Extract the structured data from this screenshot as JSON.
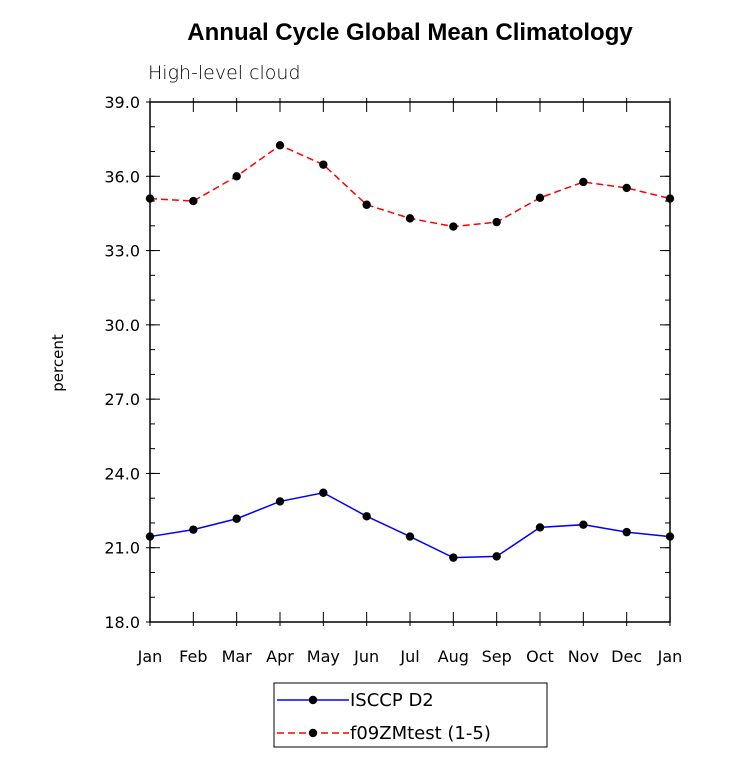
{
  "chart_data": {
    "type": "line",
    "title": "Annual Cycle Global Mean Climatology",
    "subtitle": "High-level cloud",
    "xlabel": "",
    "ylabel": "percent",
    "categories": [
      "Jan",
      "Feb",
      "Mar",
      "Apr",
      "May",
      "Jun",
      "Jul",
      "Aug",
      "Sep",
      "Oct",
      "Nov",
      "Dec",
      "Jan"
    ],
    "ylim": [
      18.0,
      39.0
    ],
    "yticks": [
      "18.0",
      "21.0",
      "24.0",
      "27.0",
      "30.0",
      "33.0",
      "36.0",
      "39.0"
    ],
    "grid": false,
    "legend_position": "bottom-center",
    "series": [
      {
        "name": "ISCCP D2",
        "color": "#0000ff",
        "line_style": "solid",
        "marker": "filled-circle",
        "values": [
          21.45,
          21.73,
          22.17,
          22.87,
          23.22,
          22.27,
          21.45,
          20.6,
          20.65,
          21.82,
          21.93,
          21.63,
          21.45
        ]
      },
      {
        "name": "f09ZMtest (1-5)",
        "color": "#ff0000",
        "line_style": "dashed",
        "marker": "filled-circle",
        "values": [
          35.1,
          35.0,
          36.0,
          37.25,
          36.47,
          34.85,
          34.3,
          33.97,
          34.15,
          35.13,
          35.77,
          35.53,
          35.1
        ]
      }
    ]
  }
}
